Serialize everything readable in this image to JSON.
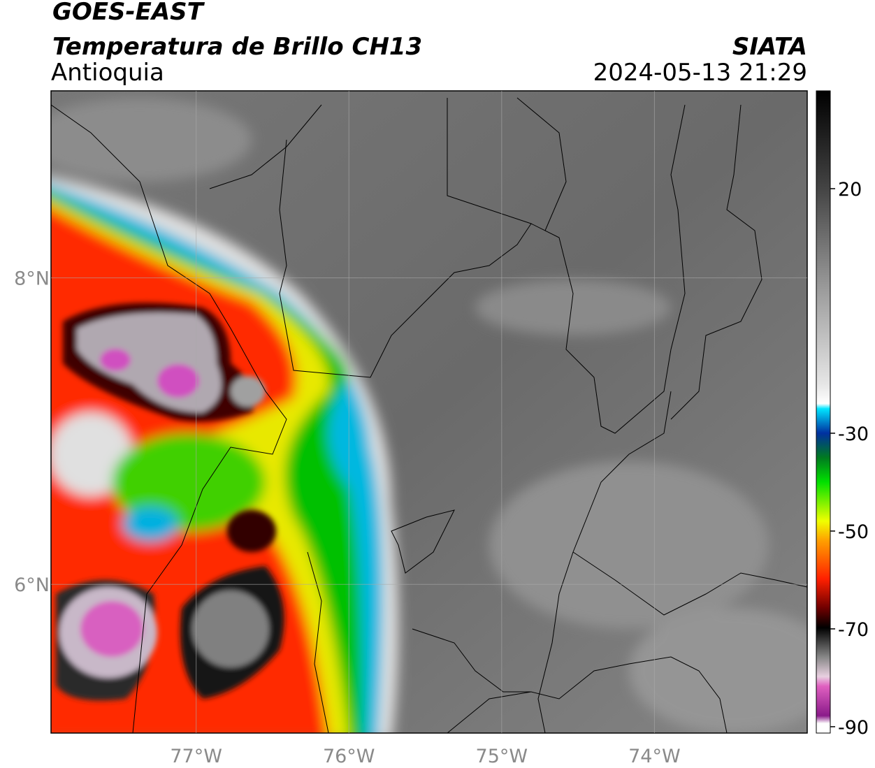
{
  "header": {
    "title": "GOES-EAST",
    "subtitle": "Temperatura de Brillo CH13",
    "region": "Antioquia",
    "source": "SIATA",
    "timestamp": "2024-05-13 21:29"
  },
  "map": {
    "xlim": [
      -77.95,
      -73.0
    ],
    "ylim": [
      5.03,
      9.22
    ],
    "xticks": [
      {
        "value": -77,
        "label": "77°W"
      },
      {
        "value": -76,
        "label": "76°W"
      },
      {
        "value": -75,
        "label": "75°W"
      },
      {
        "value": -74,
        "label": "74°W"
      }
    ],
    "yticks": [
      {
        "value": 8,
        "label": "8°N"
      },
      {
        "value": 6,
        "label": "6°N"
      }
    ],
    "grid": true
  },
  "colorbar": {
    "lim": [
      -91.3,
      40
    ],
    "ticks": [
      20,
      -30,
      -50,
      -70,
      -90
    ]
  }
}
